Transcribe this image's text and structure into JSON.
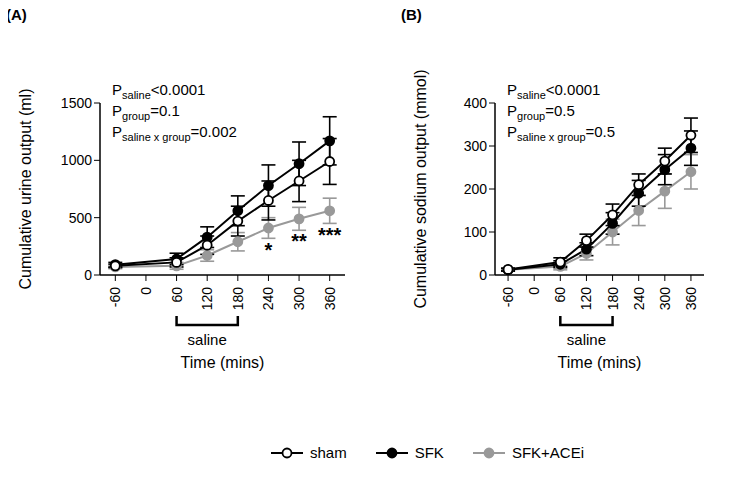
{
  "chart_data": [
    {
      "type": "line",
      "panel_label": "(A)",
      "y_label": "Cumulative urine output (ml)",
      "x_label": "Time (mins)",
      "x": [
        -60,
        60,
        120,
        180,
        240,
        300,
        360
      ],
      "xlim": [
        -90,
        390
      ],
      "xticks": [
        -60,
        0,
        60,
        120,
        180,
        240,
        300,
        360
      ],
      "ylim": [
        0,
        1500
      ],
      "yticks": [
        0,
        500,
        1000,
        1500
      ],
      "legend": "bottom",
      "series": [
        {
          "name": "SFK+ACEi",
          "color": "#999999",
          "marker": "circle",
          "values": [
            70,
            80,
            170,
            290,
            410,
            490,
            560
          ],
          "errors": [
            15,
            30,
            50,
            80,
            90,
            100,
            110
          ]
        },
        {
          "name": "SFK",
          "color": "#000000",
          "marker": "circle",
          "values": [
            90,
            140,
            330,
            560,
            780,
            970,
            1170
          ],
          "errors": [
            20,
            50,
            90,
            130,
            180,
            190,
            210
          ]
        },
        {
          "name": "sham",
          "color": "#000000",
          "marker": "open circle",
          "values": [
            80,
            110,
            260,
            470,
            650,
            820,
            990
          ],
          "errors": [
            15,
            40,
            80,
            130,
            170,
            180,
            200
          ]
        }
      ],
      "annotations": [
        {
          "symbol": "P",
          "subscript": "saline",
          "text": "<0.0001"
        },
        {
          "symbol": "P",
          "subscript": "group",
          "text": "=0.1"
        },
        {
          "symbol": "P",
          "subscript": "saline x group",
          "text": "=0.002"
        }
      ],
      "significance": [
        {
          "x": 240,
          "series": "SFK+ACEi",
          "text": "*"
        },
        {
          "x": 300,
          "series": "SFK+ACEi",
          "text": "**"
        },
        {
          "x": 360,
          "series": "SFK+ACEi",
          "text": "***"
        }
      ],
      "saline_period": {
        "x": [
          60,
          180
        ],
        "label": "saline"
      }
    },
    {
      "type": "line",
      "panel_label": "(B)",
      "y_label": "Cumulative sodium output (mmol)",
      "x_label": "Time (mins)",
      "x": [
        -60,
        60,
        120,
        180,
        240,
        300,
        360
      ],
      "xlim": [
        -90,
        390
      ],
      "xticks": [
        -60,
        0,
        60,
        120,
        180,
        240,
        300,
        360
      ],
      "ylim": [
        0,
        400
      ],
      "yticks": [
        0,
        100,
        200,
        300,
        400
      ],
      "series": [
        {
          "name": "SFK+ACEi",
          "color": "#999999",
          "marker": "circle",
          "values": [
            12,
            20,
            50,
            100,
            150,
            195,
            240
          ],
          "errors": [
            3,
            8,
            15,
            30,
            35,
            40,
            40
          ]
        },
        {
          "name": "SFK",
          "color": "#000000",
          "marker": "circle",
          "values": [
            12,
            25,
            60,
            120,
            190,
            245,
            295
          ],
          "errors": [
            3,
            8,
            15,
            25,
            30,
            35,
            40
          ]
        },
        {
          "name": "sham",
          "color": "#000000",
          "marker": "open circle",
          "values": [
            13,
            30,
            80,
            140,
            210,
            265,
            325
          ],
          "errors": [
            3,
            10,
            15,
            25,
            25,
            30,
            40
          ]
        }
      ],
      "annotations": [
        {
          "symbol": "P",
          "subscript": "saline",
          "text": "<0.0001"
        },
        {
          "symbol": "P",
          "subscript": "group",
          "text": "=0.5"
        },
        {
          "symbol": "P",
          "subscript": "saline x group",
          "text": "=0.5"
        }
      ],
      "saline_period": {
        "x": [
          60,
          180
        ],
        "label": "saline"
      }
    }
  ]
}
